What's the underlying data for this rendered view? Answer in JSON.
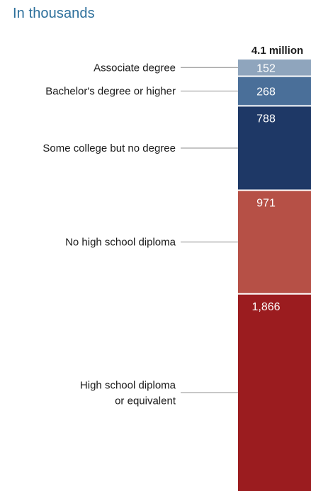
{
  "subtitle": "In thousands",
  "chart_data": {
    "type": "bar",
    "subtype": "stacked-100",
    "total_label": "4.1 million",
    "categories": [
      "4.1 million"
    ],
    "series": [
      {
        "name": "Associate degree",
        "label_lines": [
          "Associate degree"
        ],
        "value": 152,
        "value_label": "152",
        "color": "#8fa5bd"
      },
      {
        "name": "Bachelor's degree or higher",
        "label_lines": [
          "Bachelor's degree or higher"
        ],
        "value": 268,
        "value_label": "268",
        "color": "#4a6f99"
      },
      {
        "name": "Some college but no degree",
        "label_lines": [
          "Some college but no degree"
        ],
        "value": 788,
        "value_label": "788",
        "color": "#1e3866"
      },
      {
        "name": "No high school diploma",
        "label_lines": [
          "No high school diploma"
        ],
        "value": 971,
        "value_label": "971",
        "color": "#b65046"
      },
      {
        "name": "High school diploma or equivalent",
        "label_lines": [
          "High school diploma",
          "or equivalent"
        ],
        "value": 1866,
        "value_label": "1,866",
        "color": "#9b1c1f"
      }
    ]
  }
}
